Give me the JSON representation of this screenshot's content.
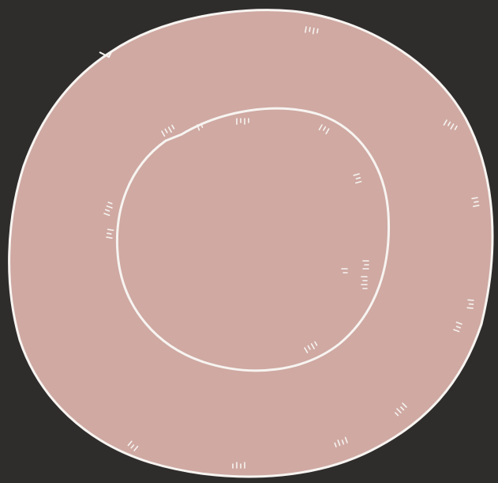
{
  "colors": {
    "background": "#2f2d2c",
    "disc": "#cfa9a2",
    "line": "#f7f4f1"
  },
  "artwork": {
    "subject": "pink-disc-with-inner-circle-line",
    "tick_clusters": 20
  }
}
